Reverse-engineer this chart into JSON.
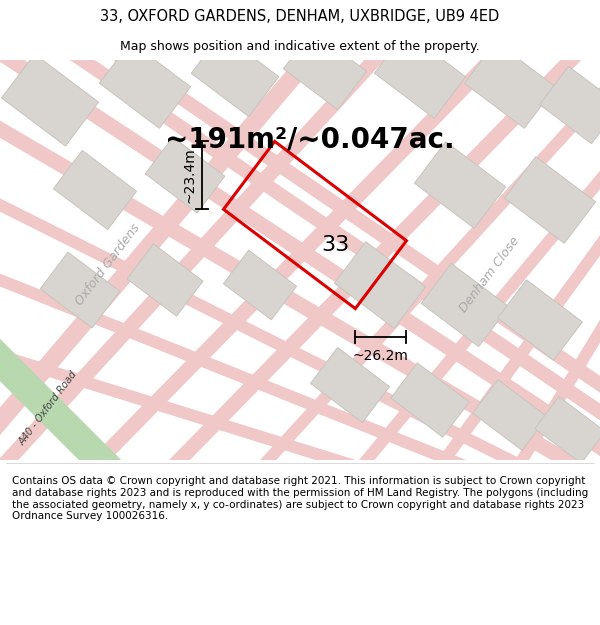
{
  "title_line1": "33, OXFORD GARDENS, DENHAM, UXBRIDGE, UB9 4ED",
  "title_line2": "Map shows position and indicative extent of the property.",
  "area_text": "~191m²/~0.047ac.",
  "label_33": "33",
  "dim_height": "~23.4m",
  "dim_width": "~26.2m",
  "label_oxford_gardens": "Oxford Gardens",
  "label_denham_close": "Denham Close",
  "label_a40": "A40 - Oxford Road",
  "footer_text": "Contains OS data © Crown copyright and database right 2021. This information is subject to Crown copyright and database rights 2023 and is reproduced with the permission of HM Land Registry. The polygons (including the associated geometry, namely x, y co-ordinates) are subject to Crown copyright and database rights 2023 Ordnance Survey 100026316.",
  "map_bg": "#f2f0ed",
  "road_color_pink": "#f0c8c8",
  "road_color_green": "#b8d8b0",
  "building_color": "#d8d5d0",
  "building_edge": "#c8c5c0",
  "plot_edge": "#dd0000",
  "title_fontsize": 10.5,
  "subtitle_fontsize": 9,
  "area_fontsize": 20,
  "label_fontsize": 16,
  "dim_fontsize": 10,
  "road_label_fontsize": 9,
  "footer_fontsize": 7.5
}
